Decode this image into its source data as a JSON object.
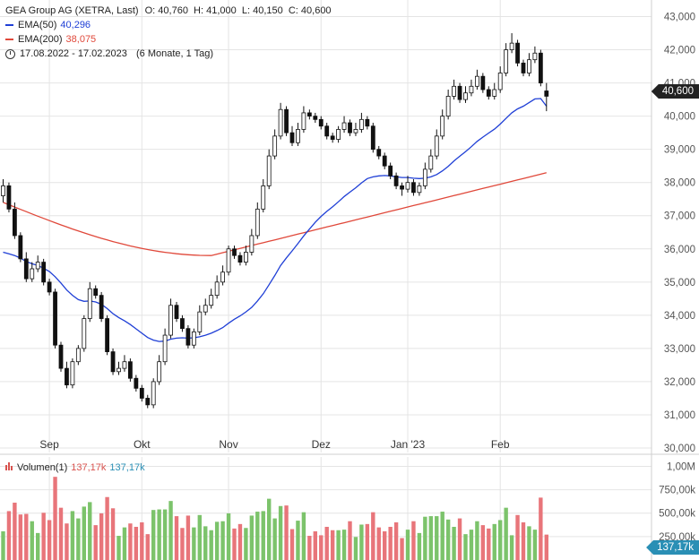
{
  "header": {
    "instrument": "GEA Group AG (XETRA, Last)",
    "ohlc": "O: 40,760  H: 41,000  L: 40,150  C: 40,600",
    "ema50_label": "EMA(50)",
    "ema50_value": "40,296",
    "ema200_label": "EMA(200)",
    "ema200_value": "38,075",
    "range": "17.08.2022 - 17.02.2023",
    "period": "(6 Monate, 1 Tag)"
  },
  "volume_legend": {
    "label": "Volumen(1)",
    "value_red": "137,17k",
    "value_blue": "137,17k"
  },
  "price_tag": "40,600",
  "volume_tag": "137,17k",
  "colors": {
    "up": "#ffffff",
    "down": "#111111",
    "ema50": "#1f3fd6",
    "ema200": "#e0483a",
    "vol_up": "#7cc36b",
    "vol_down": "#e8757a",
    "grid": "#e4e4e4"
  },
  "chart_data": {
    "type": "candlestick",
    "x_labels": [
      "Sep",
      "Okt",
      "Nov",
      "Dez",
      "Jan '23",
      "Feb"
    ],
    "y_ticks": [
      "30,000",
      "31,000",
      "32,000",
      "33,000",
      "34,000",
      "35,000",
      "36,000",
      "37,000",
      "38,000",
      "39,000",
      "40,000",
      "41,000",
      "42,000",
      "43,000"
    ],
    "ylim": [
      30,
      43.5
    ],
    "volume_ticks": [
      "250,00k",
      "500,00k",
      "750,00k",
      "1,00M"
    ],
    "volume_ylim": [
      0,
      1100
    ],
    "close": [
      37.9,
      37.2,
      36.4,
      35.7,
      35.1,
      35.4,
      35.6,
      35.0,
      34.7,
      33.1,
      32.4,
      31.9,
      32.6,
      33.0,
      33.9,
      34.8,
      34.6,
      33.9,
      32.9,
      32.3,
      32.4,
      32.6,
      32.1,
      31.8,
      31.5,
      31.3,
      32.0,
      32.6,
      33.4,
      34.3,
      33.9,
      33.6,
      33.1,
      33.5,
      34.1,
      34.3,
      34.6,
      35.0,
      35.3,
      36.0,
      35.8,
      35.6,
      35.9,
      36.4,
      37.2,
      37.9,
      38.8,
      39.4,
      40.2,
      39.5,
      39.2,
      39.6,
      40.1,
      40.0,
      39.9,
      39.7,
      39.4,
      39.3,
      39.6,
      39.8,
      39.5,
      39.6,
      39.9,
      39.7,
      39.0,
      38.8,
      38.5,
      38.2,
      37.9,
      37.8,
      38.0,
      37.7,
      37.9,
      38.4,
      38.8,
      39.4,
      40.0,
      40.6,
      40.9,
      40.5,
      40.7,
      40.9,
      41.2,
      40.8,
      40.6,
      40.8,
      41.3,
      42.0,
      42.2,
      41.6,
      41.3,
      41.7,
      41.9,
      41.0,
      40.6
    ],
    "open": [
      37.6,
      37.9,
      37.2,
      36.4,
      35.7,
      35.1,
      35.4,
      35.6,
      35.0,
      34.7,
      33.1,
      32.4,
      31.9,
      32.6,
      33.0,
      33.9,
      34.8,
      34.6,
      33.9,
      32.9,
      32.3,
      32.4,
      32.6,
      32.1,
      31.8,
      31.5,
      31.3,
      32.0,
      32.6,
      33.4,
      34.3,
      33.9,
      33.6,
      33.1,
      33.5,
      34.1,
      34.3,
      34.6,
      35.0,
      35.3,
      36.0,
      35.8,
      35.6,
      35.9,
      36.4,
      37.2,
      37.9,
      38.8,
      39.4,
      40.2,
      39.5,
      39.2,
      39.6,
      40.1,
      40.0,
      39.9,
      39.7,
      39.4,
      39.3,
      39.6,
      39.8,
      39.5,
      39.6,
      39.9,
      39.7,
      39.0,
      38.8,
      38.5,
      38.2,
      37.9,
      37.8,
      38.0,
      37.7,
      37.9,
      38.4,
      38.8,
      39.4,
      40.0,
      40.6,
      40.9,
      40.5,
      40.7,
      40.9,
      41.2,
      40.8,
      40.6,
      40.8,
      41.3,
      42.0,
      42.2,
      41.6,
      41.3,
      41.7,
      41.9,
      40.76
    ],
    "high": [
      38.1,
      38.0,
      37.4,
      36.5,
      35.9,
      35.6,
      35.8,
      35.7,
      35.1,
      34.8,
      33.2,
      32.6,
      32.7,
      33.1,
      34.0,
      35.0,
      34.9,
      34.7,
      34.0,
      33.0,
      32.6,
      32.8,
      32.7,
      32.2,
      31.9,
      31.6,
      32.1,
      32.8,
      33.6,
      34.5,
      34.4,
      34.0,
      33.7,
      33.6,
      34.3,
      34.5,
      34.8,
      35.2,
      35.5,
      36.1,
      36.1,
      35.9,
      36.1,
      36.6,
      37.4,
      38.1,
      39.0,
      39.6,
      40.4,
      40.3,
      39.7,
      39.8,
      40.3,
      40.2,
      40.1,
      40.0,
      39.8,
      39.5,
      39.7,
      40.0,
      39.9,
      39.8,
      40.1,
      40.0,
      39.8,
      39.1,
      38.9,
      38.6,
      38.3,
      38.0,
      38.2,
      38.1,
      38.0,
      38.6,
      39.0,
      39.6,
      40.2,
      40.8,
      41.1,
      41.0,
      40.9,
      41.1,
      41.4,
      41.3,
      40.9,
      41.0,
      41.5,
      42.2,
      42.5,
      42.3,
      41.7,
      41.9,
      42.1,
      42.0,
      41.0
    ],
    "low": [
      37.4,
      37.1,
      36.3,
      35.6,
      35.0,
      35.0,
      35.3,
      34.9,
      34.6,
      33.0,
      32.3,
      31.8,
      31.8,
      32.5,
      32.9,
      33.8,
      34.5,
      33.8,
      32.8,
      32.2,
      32.2,
      32.3,
      32.0,
      31.7,
      31.4,
      31.2,
      31.2,
      31.9,
      32.5,
      33.3,
      33.8,
      33.5,
      33.0,
      33.0,
      33.4,
      34.0,
      34.2,
      34.5,
      34.9,
      35.2,
      35.7,
      35.5,
      35.5,
      35.8,
      36.3,
      37.1,
      37.8,
      38.7,
      39.3,
      39.4,
      39.1,
      39.1,
      39.5,
      39.9,
      39.8,
      39.6,
      39.3,
      39.2,
      39.2,
      39.5,
      39.4,
      39.4,
      39.5,
      39.6,
      38.9,
      38.7,
      38.4,
      38.1,
      37.8,
      37.6,
      37.7,
      37.6,
      37.6,
      37.8,
      38.3,
      38.7,
      39.3,
      39.9,
      40.5,
      40.4,
      40.4,
      40.6,
      40.8,
      40.7,
      40.5,
      40.5,
      40.7,
      41.2,
      41.9,
      41.5,
      41.2,
      41.2,
      41.6,
      40.9,
      40.15
    ],
    "ema50": [
      35.9,
      35.85,
      35.8,
      35.72,
      35.62,
      35.55,
      35.5,
      35.42,
      35.32,
      35.16,
      34.97,
      34.76,
      34.6,
      34.47,
      34.42,
      34.43,
      34.4,
      34.33,
      34.2,
      34.05,
      33.93,
      33.83,
      33.72,
      33.59,
      33.46,
      33.33,
      33.25,
      33.21,
      33.22,
      33.28,
      33.31,
      33.32,
      33.31,
      33.32,
      33.35,
      33.4,
      33.46,
      33.54,
      33.63,
      33.76,
      33.88,
      33.98,
      34.1,
      34.24,
      34.43,
      34.65,
      34.92,
      35.2,
      35.5,
      35.73,
      35.94,
      36.16,
      36.39,
      36.6,
      36.8,
      36.98,
      37.13,
      37.27,
      37.42,
      37.58,
      37.71,
      37.84,
      37.99,
      38.12,
      38.17,
      38.2,
      38.21,
      38.2,
      38.17,
      38.15,
      38.15,
      38.13,
      38.12,
      38.13,
      38.17,
      38.24,
      38.35,
      38.49,
      38.65,
      38.79,
      38.93,
      39.08,
      39.24,
      39.37,
      39.49,
      39.61,
      39.76,
      39.93,
      40.1,
      40.22,
      40.3,
      40.41,
      40.52,
      40.53,
      40.3
    ]
  }
}
